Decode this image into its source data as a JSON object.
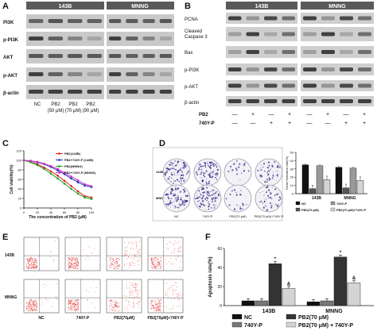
{
  "panels": {
    "A": "A",
    "B": "B",
    "C": "C",
    "D": "D",
    "E": "E",
    "F": "F"
  },
  "panel_a": {
    "cell_lines": [
      "143B",
      "MNNG"
    ],
    "rows": [
      "PI3K",
      "p-PI3K",
      "AKT",
      "p-AKT",
      "β-actin"
    ],
    "lanes": [
      "NC",
      "PB2\n(50 μM)",
      "PB2\n(70 μM)",
      "PB2\n(90 μM)"
    ]
  },
  "panel_b": {
    "cell_lines": [
      "143B",
      "MNNG"
    ],
    "rows": [
      "PCNA",
      "Cleaved\nCaspase 3",
      "Bax",
      "p-PI3K",
      "p-AKT",
      "β-actin"
    ],
    "treatments": [
      {
        "name": "PB2",
        "signs": [
          "—",
          "+",
          "—",
          "+",
          "—",
          "+",
          "—",
          "+"
        ]
      },
      {
        "name": "740Y-P",
        "signs": [
          "—",
          "—",
          "+",
          "+",
          "—",
          "—",
          "+",
          "+"
        ]
      }
    ]
  },
  "panel_c": {
    "chart_data": {
      "type": "line",
      "title": "",
      "xlabel": "The concentration of PB2 (μM)",
      "ylabel": "Cell viability(%)",
      "x": [
        0,
        10,
        20,
        30,
        40,
        50,
        60,
        70,
        80,
        90,
        100
      ],
      "xticks": [
        "0",
        "20",
        "40",
        "60",
        "80",
        "100"
      ],
      "yticks": [
        "0",
        "20",
        "40",
        "60",
        "80",
        "100",
        "120"
      ],
      "xlim": [
        0,
        100
      ],
      "ylim": [
        0,
        120
      ],
      "legend_position": "top-right",
      "series": [
        {
          "name": "PB2(143B)",
          "color": "#e02020",
          "values": [
            100,
            97,
            92,
            85,
            77,
            68,
            57,
            46,
            35,
            25,
            22
          ]
        },
        {
          "name": "PB2+740Y-P (143B)",
          "color": "#2030c0",
          "values": [
            100,
            99,
            96,
            92,
            86,
            79,
            71,
            62,
            54,
            47,
            44
          ]
        },
        {
          "name": "PB2(MNNG)",
          "color": "#20a020",
          "values": [
            100,
            96,
            90,
            82,
            72,
            62,
            51,
            40,
            30,
            22,
            19
          ]
        },
        {
          "name": "PB2+740Y-P (MNNG)",
          "color": "#d030c0",
          "values": [
            100,
            99,
            97,
            93,
            88,
            82,
            74,
            66,
            58,
            50,
            46
          ]
        }
      ]
    }
  },
  "panel_d": {
    "row_labels": [
      "143B",
      "MNNG"
    ],
    "col_labels": [
      "NC",
      "740Y-P",
      "PB2(70 μM)",
      "PB2(70 μM)+740Y-P"
    ],
    "chart_data": {
      "type": "bar",
      "categories": [
        "143B",
        "MNNG"
      ],
      "ylabel": "Clone formation rate(%)",
      "ylim": [
        0,
        50
      ],
      "yticks": [
        "0",
        "10",
        "20",
        "30",
        "40",
        "50"
      ],
      "legend_position": "bottom",
      "significance": [
        "a",
        "b",
        "a",
        "b"
      ],
      "series": [
        {
          "name": "NC",
          "color": "#111111",
          "values": [
            35,
            32
          ]
        },
        {
          "name": "PB2(70 μM)",
          "color": "#555555",
          "values": [
            6,
            7
          ]
        },
        {
          "name": "740Y-P",
          "color": "#999999",
          "values": [
            34,
            31
          ]
        },
        {
          "name": "PB2(70 μM)+740Y-P",
          "color": "#d4d4d4",
          "values": [
            17,
            16
          ]
        }
      ]
    }
  },
  "panel_e": {
    "row_labels": [
      "143B",
      "MNNG"
    ],
    "col_labels": [
      "NC",
      "740Y-P",
      "PB2[70μM]",
      "PB2[70μM]+740Y-P"
    ]
  },
  "panel_f": {
    "chart_data": {
      "type": "bar",
      "categories": [
        "143B",
        "MNNG"
      ],
      "ylabel": "Apoptosis rate(%)",
      "ylim": [
        0,
        60
      ],
      "yticks": [
        "0",
        "20",
        "40",
        "60"
      ],
      "legend_position": "bottom",
      "significance": [
        "*",
        "&",
        "*",
        "&"
      ],
      "series": [
        {
          "name": "NC",
          "color": "#111111",
          "values": [
            5,
            4
          ]
        },
        {
          "name": "740Y-P",
          "color": "#777777",
          "values": [
            5,
            5
          ]
        },
        {
          "name": "PB2(70 μM)",
          "color": "#333333",
          "values": [
            44,
            51
          ]
        },
        {
          "name": "PB2(70 μM) + 740Y-P",
          "color": "#d4d4d4",
          "values": [
            18,
            24
          ]
        }
      ]
    }
  }
}
